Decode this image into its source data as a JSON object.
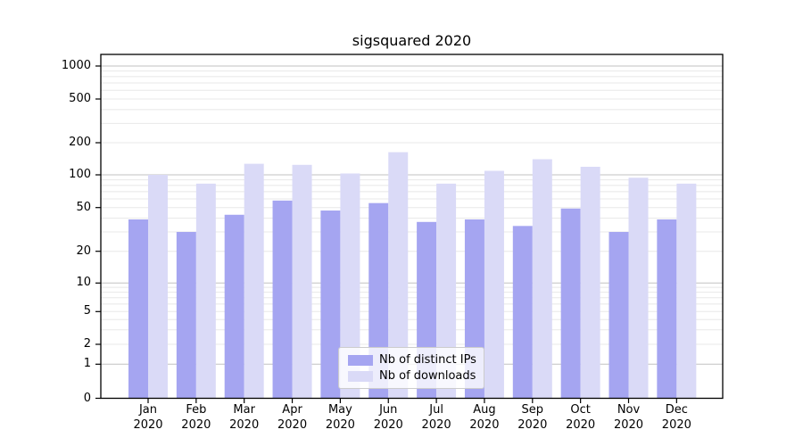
{
  "figure": {
    "background": "#ffffff"
  },
  "chart_data": {
    "type": "bar",
    "title": "sigsquared 2020",
    "categories": [
      "Jan",
      "Feb",
      "Mar",
      "Apr",
      "May",
      "Jun",
      "Jul",
      "Aug",
      "Sep",
      "Oct",
      "Nov",
      "Dec"
    ],
    "year_suffix": "2020",
    "series": [
      {
        "name": "Nb of distinct IPs",
        "color": "#a5a5f1",
        "values": [
          39,
          30,
          43,
          58,
          47,
          55,
          37,
          39,
          34,
          49,
          30,
          39
        ]
      },
      {
        "name": "Nb of downloads",
        "color": "#dadaf7",
        "values": [
          100,
          83,
          127,
          124,
          103,
          163,
          83,
          109,
          140,
          119,
          94,
          83
        ]
      }
    ],
    "y_axis": {
      "scale": "log",
      "tick_labels": [
        "1000",
        "500",
        "200",
        "100",
        "50",
        "20",
        "10",
        "5",
        "2",
        "1",
        "0"
      ],
      "tick_values": [
        1000,
        500,
        200,
        100,
        50,
        20,
        10,
        5,
        2,
        1,
        0
      ],
      "ylim": [
        0,
        1300
      ],
      "grid": true
    },
    "legend": {
      "position": "lower-center",
      "entries": [
        "Nb of distinct IPs",
        "Nb of downloads"
      ]
    }
  },
  "colors": {
    "major_grid": "#c2c2c2",
    "minor_grid": "#e8e8e8",
    "axis": "#000000",
    "text": "#000000",
    "legend_border": "#cccccc"
  }
}
